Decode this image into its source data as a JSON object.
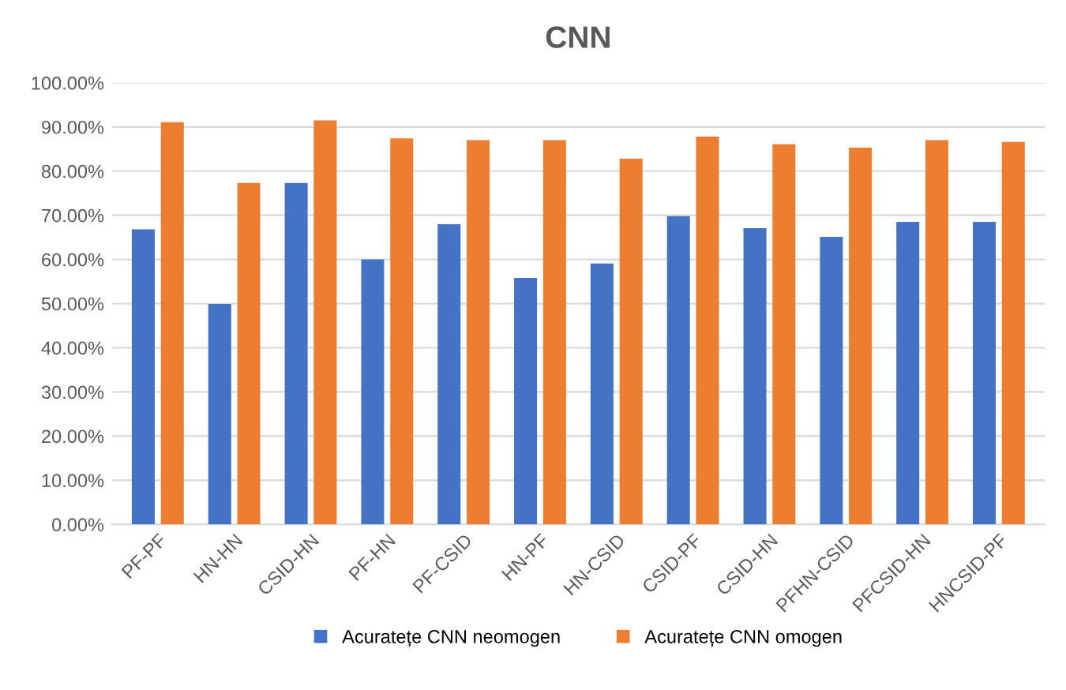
{
  "chart_data": {
    "type": "bar",
    "title": "CNN",
    "categories": [
      "PF-PF",
      "HN-HN",
      "CSID-HN",
      "PF-HN",
      "PF-CSID",
      "HN-PF",
      "HN-CSID",
      "CSID-PF",
      "CSID-HN",
      "PFHN-CSID",
      "PFCSID-HN",
      "HNCSID-PF"
    ],
    "series": [
      {
        "name": "Acuratețe CNN neomogen",
        "color": "#4472c4",
        "values": [
          66.8,
          49.9,
          77.3,
          60.0,
          68.0,
          55.8,
          59.1,
          69.8,
          67.1,
          65.1,
          68.5,
          68.5
        ]
      },
      {
        "name": "Acuratețe CNN omogen",
        "color": "#ed7d31",
        "values": [
          91.1,
          77.3,
          91.5,
          87.4,
          87.0,
          87.0,
          82.8,
          87.8,
          86.1,
          85.3,
          87.0,
          86.6
        ]
      }
    ],
    "ylim": [
      0,
      100
    ],
    "yticks": [
      {
        "value": 0,
        "label": "0.00%"
      },
      {
        "value": 10,
        "label": "10.00%"
      },
      {
        "value": 20,
        "label": "20.00%"
      },
      {
        "value": 30,
        "label": "30.00%"
      },
      {
        "value": 40,
        "label": "40.00%"
      },
      {
        "value": 50,
        "label": "50.00%"
      },
      {
        "value": 60,
        "label": "60.00%"
      },
      {
        "value": 70,
        "label": "70.00%"
      },
      {
        "value": 80,
        "label": "80.00%"
      },
      {
        "value": 90,
        "label": "90.00%"
      },
      {
        "value": 100,
        "label": "100.00%"
      }
    ],
    "grid": "y",
    "legend": "bottom"
  }
}
